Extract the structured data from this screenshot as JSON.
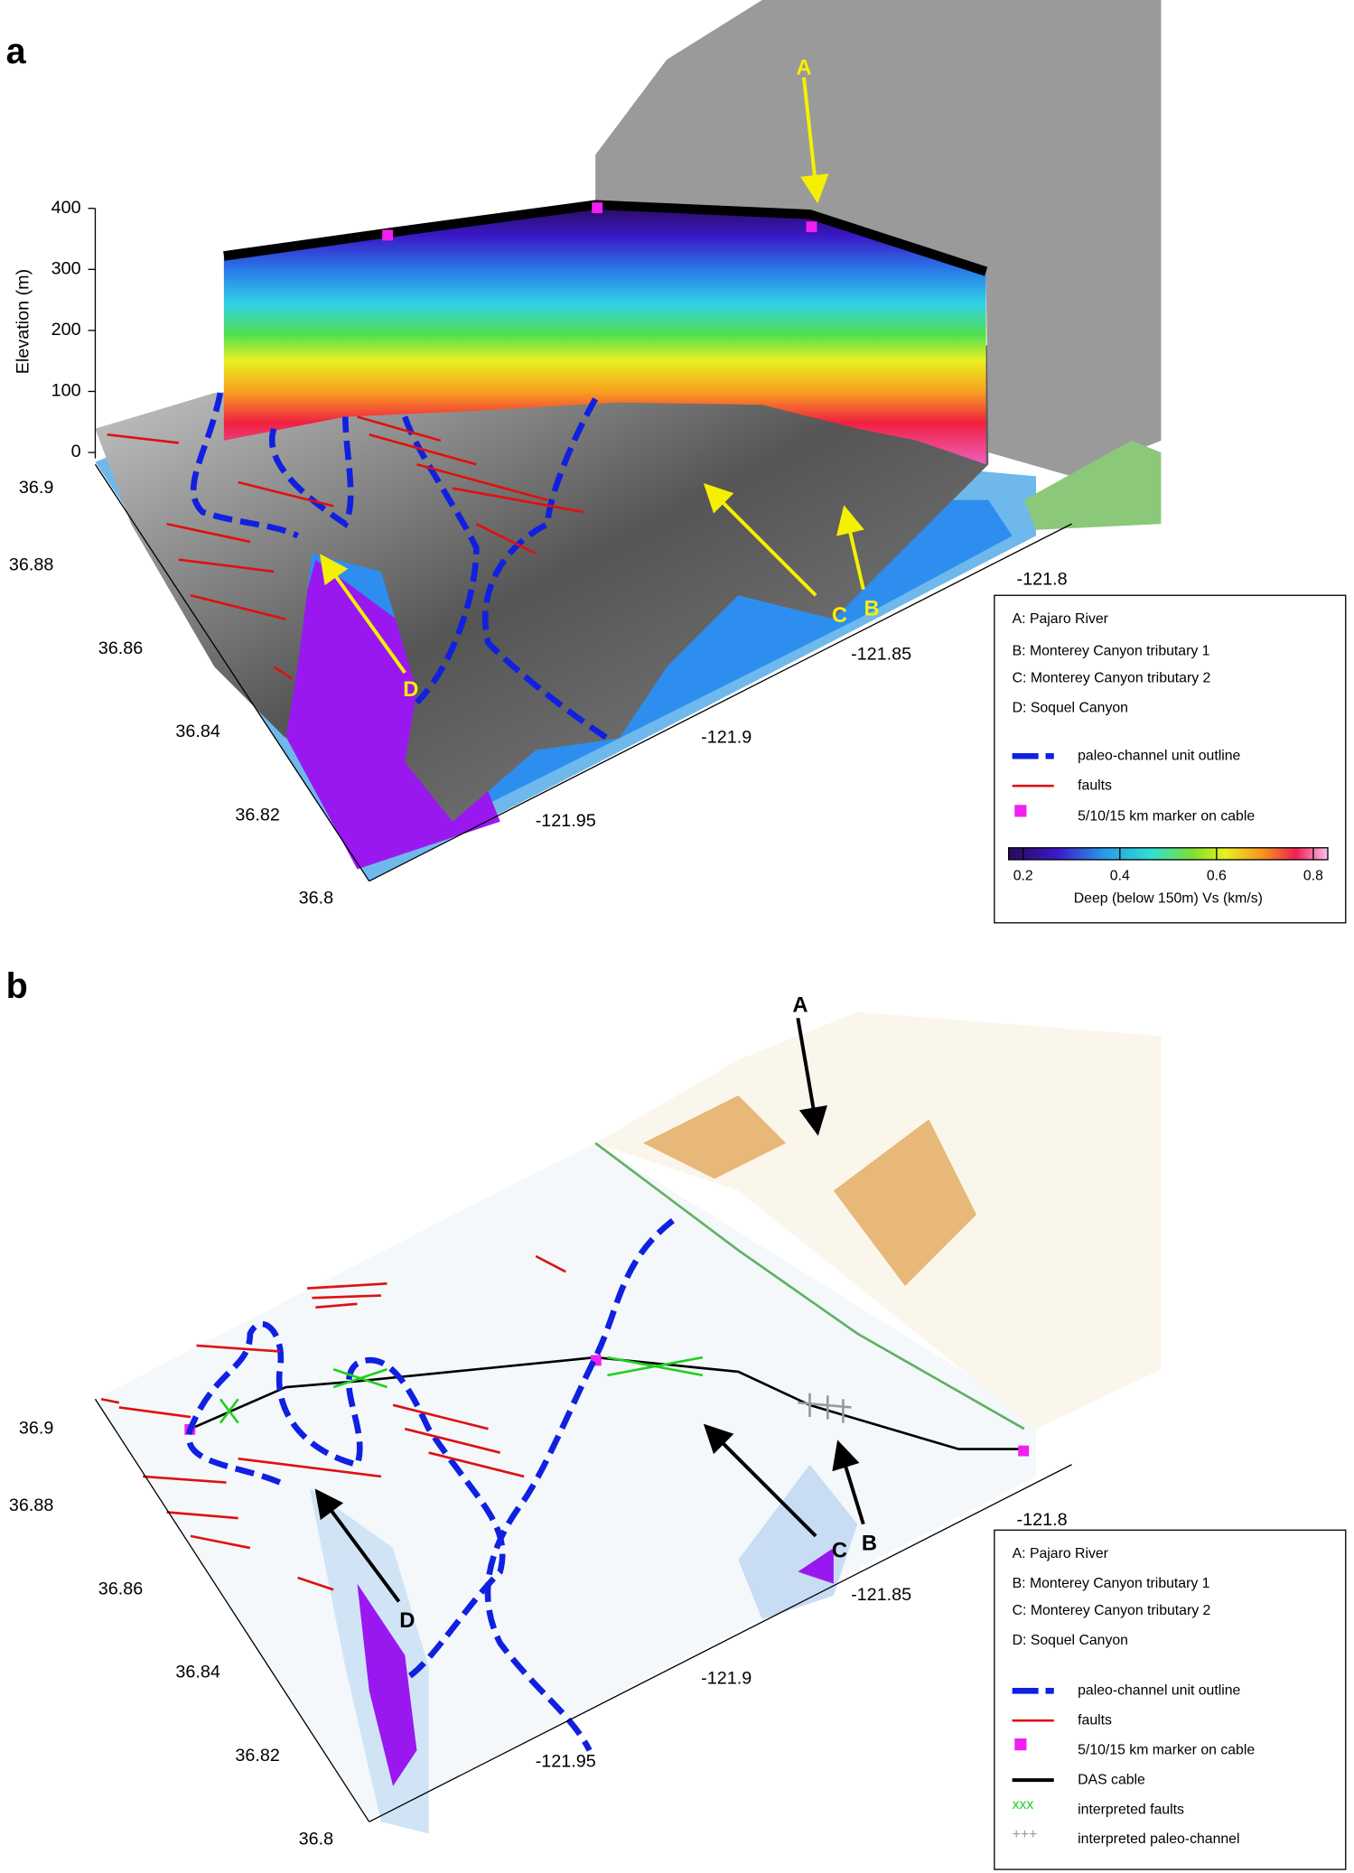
{
  "panels": [
    {
      "label": "a",
      "elevation_axis": {
        "title": "Elevation (m)",
        "ticks": [
          0,
          100,
          200,
          300,
          400
        ]
      },
      "lat_ticks": [
        36.9,
        36.88,
        36.86,
        36.84,
        36.82,
        36.8
      ],
      "lon_ticks": [
        -121.95,
        -121.9,
        -121.85,
        -121.8
      ],
      "arrow_labels": [
        "A",
        "B",
        "C",
        "D"
      ],
      "legend": {
        "keys": [
          "A: Pajaro River",
          "B: Monterey Canyon tributary 1",
          "C: Monterey Canyon tributary 2",
          "D: Soquel Canyon"
        ],
        "symbols": [
          "paleo-channel unit outline",
          "faults",
          "5/10/15 km marker on cable"
        ],
        "colorbar": {
          "clim": [
            0.17,
            0.83
          ],
          "ticks": [
            0.2,
            0.4,
            0.6,
            0.8
          ],
          "label": "Deep (below 150m) Vs (km/s)"
        }
      }
    },
    {
      "label": "b",
      "lat_ticks": [
        36.9,
        36.88,
        36.86,
        36.84,
        36.82,
        36.8
      ],
      "lon_ticks": [
        -121.95,
        -121.9,
        -121.85,
        -121.8
      ],
      "arrow_labels": [
        "A",
        "B",
        "C",
        "D"
      ],
      "legend": {
        "keys": [
          "A: Pajaro River",
          "B: Monterey Canyon tributary 1",
          "C: Monterey Canyon tributary 2",
          "D: Soquel Canyon"
        ],
        "symbols": [
          "paleo-channel unit outline",
          "faults",
          "5/10/15 km marker on cable",
          "DAS cable",
          "interpreted faults",
          "interpreted paleo-channel"
        ],
        "symbol_glyphs": [
          "xxx",
          "+++"
        ]
      }
    }
  ]
}
